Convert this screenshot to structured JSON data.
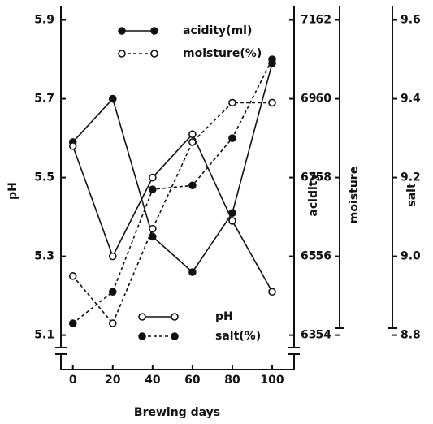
{
  "chart_data": {
    "type": "line",
    "x_label": "Brewing days",
    "x": [
      0,
      20,
      40,
      60,
      80,
      100
    ],
    "xlim": [
      -6,
      111
    ],
    "xticks": [
      0,
      20,
      40,
      60,
      80,
      100
    ],
    "y_label": "pH",
    "ylim": [
      5.06,
      5.93
    ],
    "yticks": [
      5.1,
      5.3,
      5.5,
      5.7,
      5.9
    ],
    "y2_label": "acidity",
    "y2lim": [
      62.6,
      71.3
    ],
    "y2ticks": [
      63,
      65,
      67,
      69,
      71
    ],
    "y3_label": "moisture",
    "y3lim": [
      53.6,
      62.3
    ],
    "y3ticks": [
      54,
      56,
      58,
      60,
      62
    ],
    "y4_label": "salt",
    "y4lim": [
      8.76,
      9.63
    ],
    "y4ticks": [
      {
        "value": 8.8,
        "label": "8.8"
      },
      {
        "value": 9.0,
        "label": "9.0"
      },
      {
        "value": 9.2,
        "label": "9.2"
      },
      {
        "value": 9.4,
        "label": "9.4"
      },
      {
        "value": 9.6,
        "label": "9.6"
      }
    ],
    "series": [
      {
        "name": "acidity(ml)",
        "axis": "y2",
        "color": "#111111",
        "marker": "filled",
        "dashed": false,
        "values": [
          67.9,
          69.0,
          65.5,
          64.6,
          66.1,
          69.9
        ]
      },
      {
        "name": "moisture(%)",
        "axis": "y3",
        "color": "#111111",
        "marker": "open",
        "dashed": true,
        "values": [
          55.5,
          54.3,
          56.7,
          58.9,
          59.9,
          59.9
        ]
      },
      {
        "name": "pH",
        "axis": "y",
        "color": "#111111",
        "marker": "open",
        "dashed": false,
        "values": [
          5.58,
          5.3,
          5.5,
          5.61,
          5.39,
          5.21
        ]
      },
      {
        "name": "salt(%)",
        "axis": "y4",
        "color": "#111111",
        "marker": "filled",
        "dashed": true,
        "values": [
          8.83,
          8.91,
          9.17,
          9.18,
          9.3,
          9.5
        ]
      }
    ]
  }
}
